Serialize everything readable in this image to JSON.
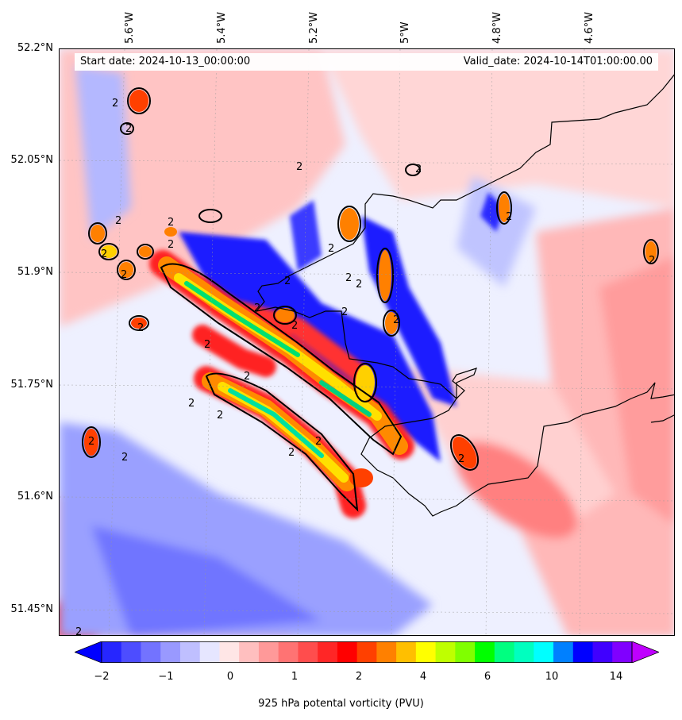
{
  "map": {
    "start_label": "Start date: 2024-10-13_00:00:00",
    "valid_label": "Valid_date: 2024-10-14T01:00:00.00",
    "lat_ticks": [
      "52.2°N",
      "52.05°N",
      "51.9°N",
      "51.75°N",
      "51.6°N",
      "51.45°N"
    ],
    "lon_ticks": [
      "5.6°W",
      "5.4°W",
      "5.2°W",
      "5°W",
      "4.8°W",
      "4.6°W"
    ],
    "contour_label": "2"
  },
  "colorbar": {
    "ticks": [
      "−2",
      "−1",
      "0",
      "1",
      "2",
      "4",
      "6",
      "10",
      "14"
    ],
    "label": "925 hPa potental vorticity (PVU)",
    "colors": [
      "#0000ff",
      "#2626ff",
      "#4d4dff",
      "#7373ff",
      "#9999ff",
      "#bfbfff",
      "#e6e6ff",
      "#ffe6e6",
      "#ffbfbf",
      "#ff9999",
      "#ff7373",
      "#ff4d4d",
      "#ff2626",
      "#ff0000",
      "#ff4000",
      "#ff8000",
      "#ffbf00",
      "#ffff00",
      "#bfff00",
      "#80ff00",
      "#00ff00",
      "#00ff80",
      "#00ffbf",
      "#00ffff",
      "#0080ff",
      "#0000ff",
      "#4000ff",
      "#8000ff",
      "#bf00ff"
    ]
  },
  "colors": {
    "negative_blue": "#0000ff",
    "positive_red": "#ff2626",
    "coastline": "#000000"
  }
}
